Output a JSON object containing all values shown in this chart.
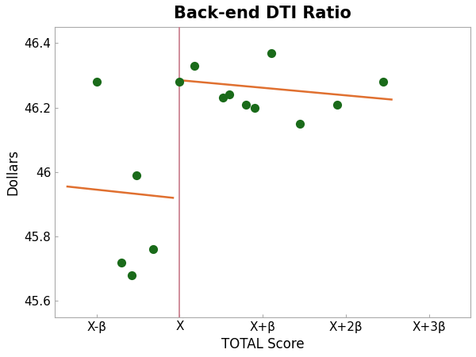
{
  "title": "Back-end DTI Ratio",
  "xlabel": "TOTAL Score",
  "ylabel": "Dollars",
  "ylim": [
    45.55,
    46.45
  ],
  "xlim": [
    -1.5,
    3.5
  ],
  "cutoff_x": 0,
  "vline_color": "#c87a8a",
  "scatter_color": "#1a6b1a",
  "line_color": "#e07030",
  "xtick_positions": [
    -1.0,
    0.0,
    1.0,
    2.0,
    3.0
  ],
  "xtick_labels": [
    "X-β",
    "X",
    "X+β",
    "X+2β",
    "X+3β"
  ],
  "ytick_positions": [
    45.6,
    45.8,
    46.0,
    46.2,
    46.4
  ],
  "ytick_labels": [
    "45.6",
    "45.8",
    "46",
    "46.2",
    "46.4"
  ],
  "left_points_x": [
    -1.0,
    -0.7,
    -0.58,
    -0.52,
    -0.32
  ],
  "left_points_y": [
    46.28,
    45.72,
    45.68,
    45.99,
    45.76
  ],
  "right_points_x": [
    0.0,
    0.18,
    0.52,
    0.6,
    0.8,
    0.9,
    1.1,
    1.45,
    1.9,
    2.45
  ],
  "right_points_y": [
    46.28,
    46.33,
    46.23,
    46.24,
    46.21,
    46.2,
    46.37,
    46.15,
    46.21,
    46.28
  ],
  "left_line_x": [
    -1.35,
    -0.08
  ],
  "left_line_y": [
    45.955,
    45.92
  ],
  "right_line_x": [
    0.0,
    2.55
  ],
  "right_line_y": [
    46.285,
    46.225
  ],
  "marker_size": 65,
  "background_color": "#ffffff",
  "spine_color": "#aaaaaa",
  "title_fontsize": 15,
  "label_fontsize": 12,
  "tick_fontsize": 11
}
